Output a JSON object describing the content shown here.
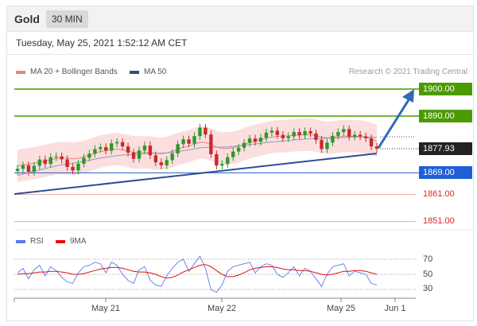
{
  "header": {
    "instrument": "Gold",
    "timeframe": "30 MIN"
  },
  "timestamp": "Tuesday, May 25, 2021 1:52:12 AM CET",
  "legend": {
    "items": [
      {
        "label": "MA 20 + Bollinger Bands",
        "color": "#f08080"
      },
      {
        "label": "MA 50",
        "color": "#2b4f87"
      }
    ],
    "copyright": "Research © 2021 Trading Central"
  },
  "levels": [
    {
      "label": "1900.00",
      "value": 1900.0,
      "color": "#4c9a00",
      "style": "box"
    },
    {
      "label": "1890.00",
      "value": 1890.0,
      "color": "#4c9a00",
      "style": "box"
    },
    {
      "label": "1877.93",
      "value": 1877.93,
      "color": "#222222",
      "style": "box"
    },
    {
      "label": "1869.00",
      "value": 1869.0,
      "color": "#1f5fd6",
      "style": "box"
    },
    {
      "label": "1861.00",
      "value": 1861.0,
      "color": "#d8262b",
      "style": "plain"
    },
    {
      "label": "1851.00",
      "value": 1851.0,
      "color": "#d8262b",
      "style": "plain"
    }
  ],
  "rsi_legend": [
    {
      "label": "RSI",
      "color": "#5b7be6"
    },
    {
      "label": "9MA",
      "color": "#e01010"
    }
  ],
  "rsi_ticks": [
    "70",
    "50",
    "30"
  ],
  "xaxis": [
    "May 21",
    "May 22",
    "May 25",
    "Jun 1"
  ],
  "chart_data": {
    "type": "candlestick",
    "ylim": [
      1848,
      1903
    ],
    "series": [
      {
        "name": "Price",
        "values": [
          1870.5,
          1871.8,
          1869.4,
          1871.6,
          1873.9,
          1872.3,
          1874.8,
          1875.1,
          1874.0,
          1871.2,
          1869.9,
          1872.4,
          1874.6,
          1876.1,
          1877.8,
          1878.5,
          1877.2,
          1879.9,
          1880.4,
          1878.8,
          1876.5,
          1874.2,
          1877.3,
          1879.1,
          1875.5,
          1872.9,
          1871.8,
          1873.7,
          1876.2,
          1879.6,
          1881.4,
          1879.8,
          1882.6,
          1885.7,
          1883.2,
          1875.9,
          1871.7,
          1872.3,
          1874.8,
          1876.9,
          1878.3,
          1880.1,
          1881.7,
          1880.5,
          1882.0,
          1883.9,
          1884.6,
          1883.0,
          1881.8,
          1882.5,
          1884.1,
          1882.9,
          1884.4,
          1883.6,
          1881.2,
          1877.8,
          1880.2,
          1882.7,
          1884.1,
          1885.2,
          1882.4,
          1883.1,
          1882.5,
          1881.8,
          1878.8,
          1877.9
        ]
      },
      {
        "name": "MA 20",
        "values": [
          1871.5,
          1872.0,
          1872.2,
          1872.6,
          1873.0,
          1873.4,
          1873.9,
          1874.3,
          1874.5,
          1874.4,
          1874.2,
          1874.4,
          1874.9,
          1875.5,
          1876.2,
          1876.9,
          1877.3,
          1877.7,
          1877.8,
          1877.5,
          1877.0,
          1876.6,
          1876.5,
          1876.7,
          1876.5,
          1876.2,
          1876.1,
          1876.4,
          1877.0,
          1877.8,
          1878.4,
          1878.9,
          1879.6,
          1880.3,
          1880.2,
          1879.4,
          1878.6,
          1878.0,
          1878.0,
          1878.3,
          1878.8,
          1879.6,
          1880.3,
          1880.8,
          1881.3,
          1881.8,
          1882.2,
          1882.5,
          1882.5,
          1882.7,
          1882.9,
          1883.0,
          1883.1,
          1883.1,
          1882.8,
          1882.2,
          1882.0,
          1882.2,
          1882.4,
          1882.6,
          1882.6,
          1882.5,
          1882.4,
          1882.2,
          1881.5,
          1880.8
        ]
      },
      {
        "name": "MA 50",
        "values": [
          1868.0,
          1868.6,
          1869.1,
          1869.6,
          1870.1,
          1870.6,
          1871.1,
          1871.6,
          1872.0,
          1872.3,
          1872.6,
          1872.9,
          1873.3,
          1873.7,
          1874.1,
          1874.5,
          1874.8,
          1875.1,
          1875.4,
          1875.6,
          1875.7,
          1875.8,
          1875.9,
          1876.1,
          1876.2,
          1876.3,
          1876.3,
          1876.4,
          1876.6,
          1876.9,
          1877.2,
          1877.5,
          1877.9,
          1878.3,
          1878.4,
          1878.5,
          1878.5,
          1878.5,
          1878.6,
          1878.8,
          1879.0,
          1879.3,
          1879.5,
          1879.7,
          1879.9,
          1880.2,
          1880.4,
          1880.6,
          1880.8,
          1881.0,
          1881.2,
          1881.3,
          1881.5,
          1881.6,
          1881.7,
          1881.7,
          1881.8,
          1881.9,
          1882.0,
          1882.1,
          1882.2,
          1882.2,
          1882.3,
          1882.3,
          1882.2,
          1882.1
        ]
      },
      {
        "name": "RSI",
        "values": [
          52,
          58,
          44,
          56,
          62,
          48,
          60,
          55,
          46,
          40,
          38,
          52,
          60,
          62,
          66,
          64,
          52,
          66,
          62,
          50,
          42,
          38,
          56,
          60,
          42,
          36,
          34,
          48,
          58,
          66,
          70,
          54,
          64,
          74,
          58,
          30,
          26,
          36,
          54,
          60,
          62,
          64,
          66,
          52,
          60,
          64,
          62,
          50,
          46,
          52,
          60,
          48,
          58,
          54,
          44,
          34,
          50,
          60,
          62,
          64,
          48,
          54,
          52,
          50,
          38,
          36
        ]
      },
      {
        "name": "9MA",
        "values": [
          50,
          51,
          51,
          52,
          53,
          53,
          54,
          54,
          53,
          52,
          50,
          50,
          51,
          53,
          55,
          57,
          58,
          59,
          59,
          58,
          56,
          54,
          53,
          53,
          52,
          50,
          47,
          45,
          46,
          49,
          53,
          56,
          59,
          62,
          63,
          60,
          55,
          50,
          47,
          47,
          49,
          52,
          56,
          58,
          59,
          60,
          60,
          59,
          57,
          56,
          56,
          55,
          55,
          54,
          52,
          50,
          49,
          50,
          52,
          54,
          54,
          55,
          55,
          54,
          52,
          50
        ]
      }
    ],
    "forecast_target": 1900.0,
    "xlabels": [
      "May 21",
      "May 22",
      "May 25",
      "Jun 1"
    ],
    "rsi_ylim": [
      20,
      80
    ]
  }
}
